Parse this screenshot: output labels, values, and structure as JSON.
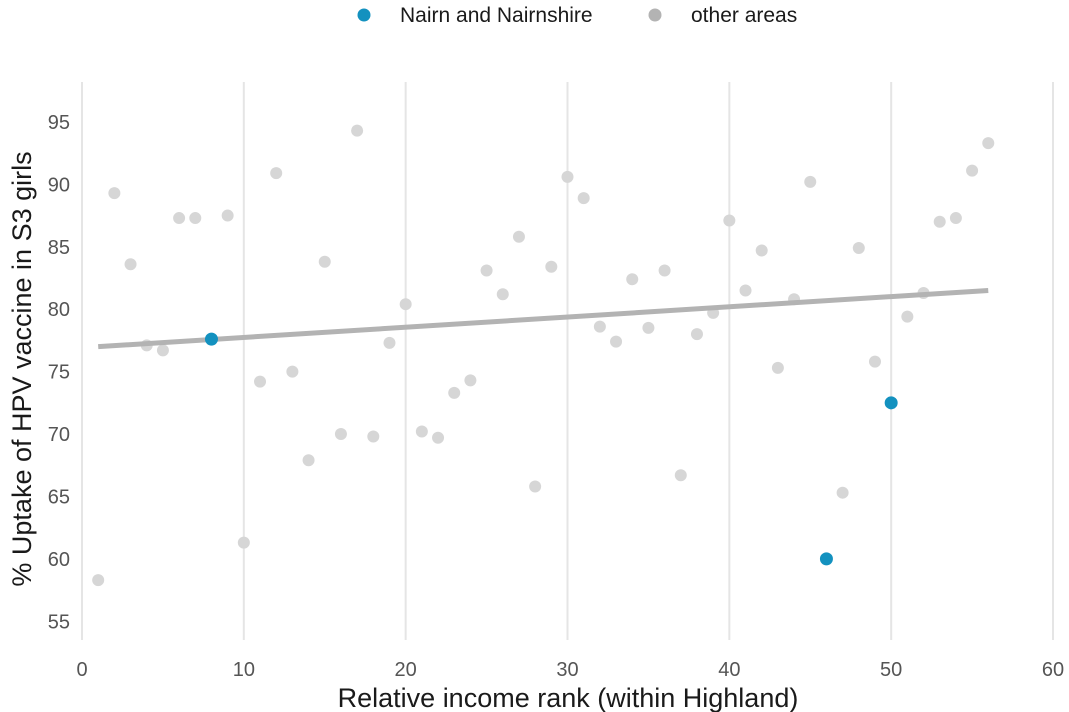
{
  "chart_data": {
    "type": "scatter",
    "xlabel": "Relative income rank (within Highland)",
    "ylabel": "% Uptake of HPV vaccine in S3 girls",
    "xlim": [
      0,
      60
    ],
    "ylim": [
      53.5,
      99
    ],
    "x_ticks": [
      0,
      10,
      20,
      30,
      40,
      50,
      60
    ],
    "y_ticks": [
      55,
      60,
      65,
      70,
      75,
      80,
      85,
      90,
      95
    ],
    "grid": "vertical major lines only",
    "legend_position": "top",
    "colors": {
      "highlight": "#1391bf",
      "other": "#d6d6d6",
      "other_legend": "#b3b3b3",
      "trend": "#b3b3b3",
      "grid": "#e5e5e5"
    },
    "series": [
      {
        "name": "Nairn and Nairnshire",
        "points": [
          [
            8,
            77.6
          ],
          [
            46,
            60.0
          ],
          [
            50,
            72.5
          ]
        ]
      },
      {
        "name": "other areas",
        "points": [
          [
            1,
            58.3
          ],
          [
            2,
            89.3
          ],
          [
            3,
            83.6
          ],
          [
            4,
            77.1
          ],
          [
            5,
            76.7
          ],
          [
            6,
            87.3
          ],
          [
            7,
            87.3
          ],
          [
            9,
            87.5
          ],
          [
            10,
            61.3
          ],
          [
            11,
            74.2
          ],
          [
            12,
            90.9
          ],
          [
            13,
            75.0
          ],
          [
            14,
            67.9
          ],
          [
            15,
            83.8
          ],
          [
            16,
            70.0
          ],
          [
            17,
            94.3
          ],
          [
            18,
            69.8
          ],
          [
            19,
            77.3
          ],
          [
            20,
            80.4
          ],
          [
            21,
            70.2
          ],
          [
            22,
            69.7
          ],
          [
            23,
            73.3
          ],
          [
            24,
            74.3
          ],
          [
            25,
            83.1
          ],
          [
            26,
            81.2
          ],
          [
            27,
            85.8
          ],
          [
            28,
            65.8
          ],
          [
            29,
            83.4
          ],
          [
            30,
            90.6
          ],
          [
            31,
            88.9
          ],
          [
            32,
            78.6
          ],
          [
            33,
            77.4
          ],
          [
            34,
            82.4
          ],
          [
            35,
            78.5
          ],
          [
            36,
            83.1
          ],
          [
            37,
            66.7
          ],
          [
            38,
            78.0
          ],
          [
            39,
            79.7
          ],
          [
            40,
            87.1
          ],
          [
            41,
            81.5
          ],
          [
            42,
            84.7
          ],
          [
            43,
            75.3
          ],
          [
            44,
            80.8
          ],
          [
            45,
            90.2
          ],
          [
            47,
            65.3
          ],
          [
            48,
            84.9
          ],
          [
            49,
            75.8
          ],
          [
            51,
            79.4
          ],
          [
            52,
            81.3
          ],
          [
            53,
            87.0
          ],
          [
            54,
            87.3
          ],
          [
            55,
            91.1
          ],
          [
            56,
            93.3
          ]
        ]
      }
    ],
    "trend_line": {
      "x": [
        1,
        56
      ],
      "y": [
        77.0,
        81.5
      ]
    }
  }
}
